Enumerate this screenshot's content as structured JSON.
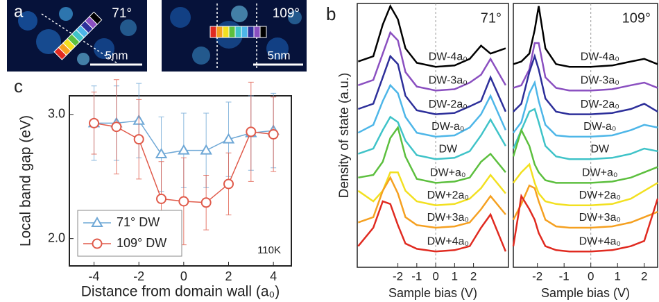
{
  "panel_labels": [
    "a",
    "b",
    "c"
  ],
  "images": [
    {
      "angle": "71°",
      "scale": "5nm"
    },
    {
      "angle": "109°",
      "scale": "5nm"
    }
  ],
  "spectra_ylabel": "Density of state (a.u.)",
  "chart_data": [
    {
      "type": "line",
      "angle": "71°",
      "xlabel": "Sample bias (V)",
      "xlim": [
        -4.15,
        3.85
      ],
      "ylim": [
        0,
        10
      ],
      "xticks": [
        -2,
        -1,
        0,
        1,
        2
      ],
      "x": [
        -4.1,
        -3.3,
        -2.8,
        -2.4,
        -2,
        -1.6,
        -1,
        0,
        1,
        1.8,
        2.4,
        2.9,
        3.7
      ],
      "series": [
        {
          "name": "DW-4a₀",
          "color": "#000000",
          "values": [
            7.8,
            8.0,
            9.2,
            9.9,
            9.4,
            8.3,
            7.75,
            7.6,
            7.65,
            7.9,
            8.4,
            8.1,
            8.3
          ]
        },
        {
          "name": "DW-3a₀",
          "color": "#8a4fc0",
          "values": [
            6.9,
            7.1,
            8.1,
            8.9,
            8.6,
            7.4,
            6.85,
            6.7,
            6.75,
            7.0,
            7.3,
            7.9,
            6.9
          ]
        },
        {
          "name": "DW-2a₀",
          "color": "#2d2f9a",
          "values": [
            6.0,
            6.2,
            7.2,
            8.0,
            7.7,
            6.5,
            5.95,
            5.8,
            5.85,
            6.1,
            6.3,
            7.2,
            5.9
          ]
        },
        {
          "name": "DW-a₀",
          "color": "#4db6e8",
          "values": [
            5.1,
            5.4,
            6.3,
            6.9,
            6.6,
            5.7,
            5.1,
            4.95,
            5.0,
            5.3,
            5.8,
            6.5,
            5.2
          ]
        },
        {
          "name": "DW",
          "color": "#3fc3c8",
          "values": [
            4.3,
            4.5,
            5.2,
            5.7,
            5.5,
            4.8,
            4.25,
            4.1,
            4.15,
            4.4,
            5.0,
            5.6,
            4.6
          ]
        },
        {
          "name": "DW+a₀",
          "color": "#5cbf3e",
          "values": [
            3.4,
            3.5,
            4.0,
            4.9,
            5.3,
            4.2,
            3.35,
            3.2,
            3.25,
            3.4,
            4.0,
            4.3,
            3.6
          ]
        },
        {
          "name": "DW+2a₀",
          "color": "#f2e020",
          "values": [
            2.9,
            2.5,
            2.9,
            3.6,
            3.6,
            2.9,
            2.5,
            2.35,
            2.4,
            2.6,
            3.0,
            3.5,
            2.8
          ]
        },
        {
          "name": "DW+3a₀",
          "color": "#f5a020",
          "values": [
            1.7,
            1.9,
            2.9,
            3.4,
            2.8,
            1.9,
            1.6,
            1.5,
            1.55,
            1.7,
            2.2,
            2.7,
            2.0
          ]
        },
        {
          "name": "DW+4a₀",
          "color": "#e02a20",
          "values": [
            0.8,
            1.5,
            2.5,
            2.4,
            1.6,
            0.9,
            0.7,
            0.6,
            0.65,
            0.8,
            1.5,
            2.0,
            0.6
          ]
        }
      ]
    },
    {
      "type": "line",
      "angle": "109°",
      "xlabel": "Sample bias (V)",
      "xlim": [
        -2.9,
        2.5
      ],
      "ylim": [
        0,
        10
      ],
      "xticks": [
        -2,
        -1,
        0,
        1,
        2
      ],
      "x": [
        -2.9,
        -2.6,
        -2.3,
        -2.1,
        -1.95,
        -1.7,
        -1.3,
        -0.8,
        0,
        0.8,
        1.5,
        2,
        2.5
      ],
      "series": [
        {
          "name": "DW-4a₀",
          "color": "#000000",
          "values": [
            7.7,
            7.8,
            8.1,
            9.0,
            9.9,
            8.3,
            7.7,
            7.6,
            7.6,
            7.65,
            7.8,
            7.9,
            7.7
          ]
        },
        {
          "name": "DW-3a₀",
          "color": "#8a4fc0",
          "values": [
            6.8,
            6.9,
            7.5,
            8.5,
            8.5,
            7.2,
            6.8,
            6.7,
            6.7,
            6.75,
            6.9,
            7.0,
            6.8
          ]
        },
        {
          "name": "DW-2a₀",
          "color": "#2d2f9a",
          "values": [
            5.9,
            6.2,
            7.4,
            8.0,
            7.5,
            6.4,
            5.9,
            5.8,
            5.8,
            5.85,
            6.0,
            6.2,
            5.9
          ]
        },
        {
          "name": "DW-a₀",
          "color": "#4db6e8",
          "values": [
            5.1,
            5.5,
            6.6,
            7.0,
            6.3,
            5.4,
            5.0,
            4.95,
            4.95,
            5.0,
            5.2,
            5.4,
            5.3
          ]
        },
        {
          "name": "DW",
          "color": "#3fc3c8",
          "values": [
            4.5,
            5.2,
            5.9,
            6.0,
            5.5,
            4.6,
            4.2,
            4.1,
            4.1,
            4.15,
            4.3,
            4.5,
            4.4
          ]
        },
        {
          "name": "DW+a₀",
          "color": "#5cbf3e",
          "values": [
            4.2,
            5.2,
            4.6,
            3.9,
            3.6,
            3.3,
            3.2,
            3.2,
            3.2,
            3.25,
            3.4,
            3.6,
            3.8
          ]
        },
        {
          "name": "DW+2a₀",
          "color": "#f2e020",
          "values": [
            3.2,
            3.6,
            3.9,
            3.2,
            2.8,
            2.5,
            2.4,
            2.35,
            2.35,
            2.4,
            2.6,
            2.9,
            3.2
          ]
        },
        {
          "name": "DW+3a₀",
          "color": "#f5a020",
          "values": [
            1.8,
            2.4,
            3.1,
            3.0,
            2.5,
            1.8,
            1.55,
            1.5,
            1.5,
            1.55,
            1.7,
            1.9,
            2.1
          ]
        },
        {
          "name": "DW+4a₀",
          "color": "#e02a20",
          "values": [
            0.8,
            2.7,
            2.2,
            1.8,
            1.3,
            0.8,
            0.65,
            0.6,
            0.6,
            0.65,
            0.8,
            1.0,
            2.6
          ]
        }
      ]
    },
    {
      "type": "errorbar",
      "xlabel": "Distance from domain wall (a₀)",
      "ylabel": "Local band gap (eV)",
      "annotation": "110K",
      "xlim": [
        -5.1,
        4.8
      ],
      "ylim": [
        1.78,
        3.15
      ],
      "xticks": [
        -4,
        -2,
        0,
        2,
        4
      ],
      "yticks": [
        {
          "value": 2,
          "label": "2.0"
        },
        {
          "value": 3,
          "label": "3.0"
        }
      ],
      "x": [
        -4,
        -3,
        -2,
        -1,
        0,
        1,
        2,
        3,
        4
      ],
      "legend": "lower left",
      "series": [
        {
          "name": "71° DW",
          "color": "#6fa8d6",
          "marker": "triangle",
          "values": [
            2.93,
            2.93,
            2.95,
            2.68,
            2.71,
            2.71,
            2.8,
            2.85,
            2.87
          ],
          "errors": [
            0.3,
            0.3,
            0.3,
            0.3,
            0.3,
            0.3,
            0.3,
            0.3,
            0.3
          ]
        },
        {
          "name": "109° DW",
          "color": "#e05a4a",
          "marker": "circle",
          "values": [
            2.93,
            2.9,
            2.8,
            2.32,
            2.3,
            2.29,
            2.44,
            2.86,
            2.84
          ],
          "errors": [
            0.25,
            0.38,
            0.32,
            0.3,
            0.35,
            0.22,
            0.25,
            0.4,
            0.3
          ]
        }
      ]
    }
  ]
}
